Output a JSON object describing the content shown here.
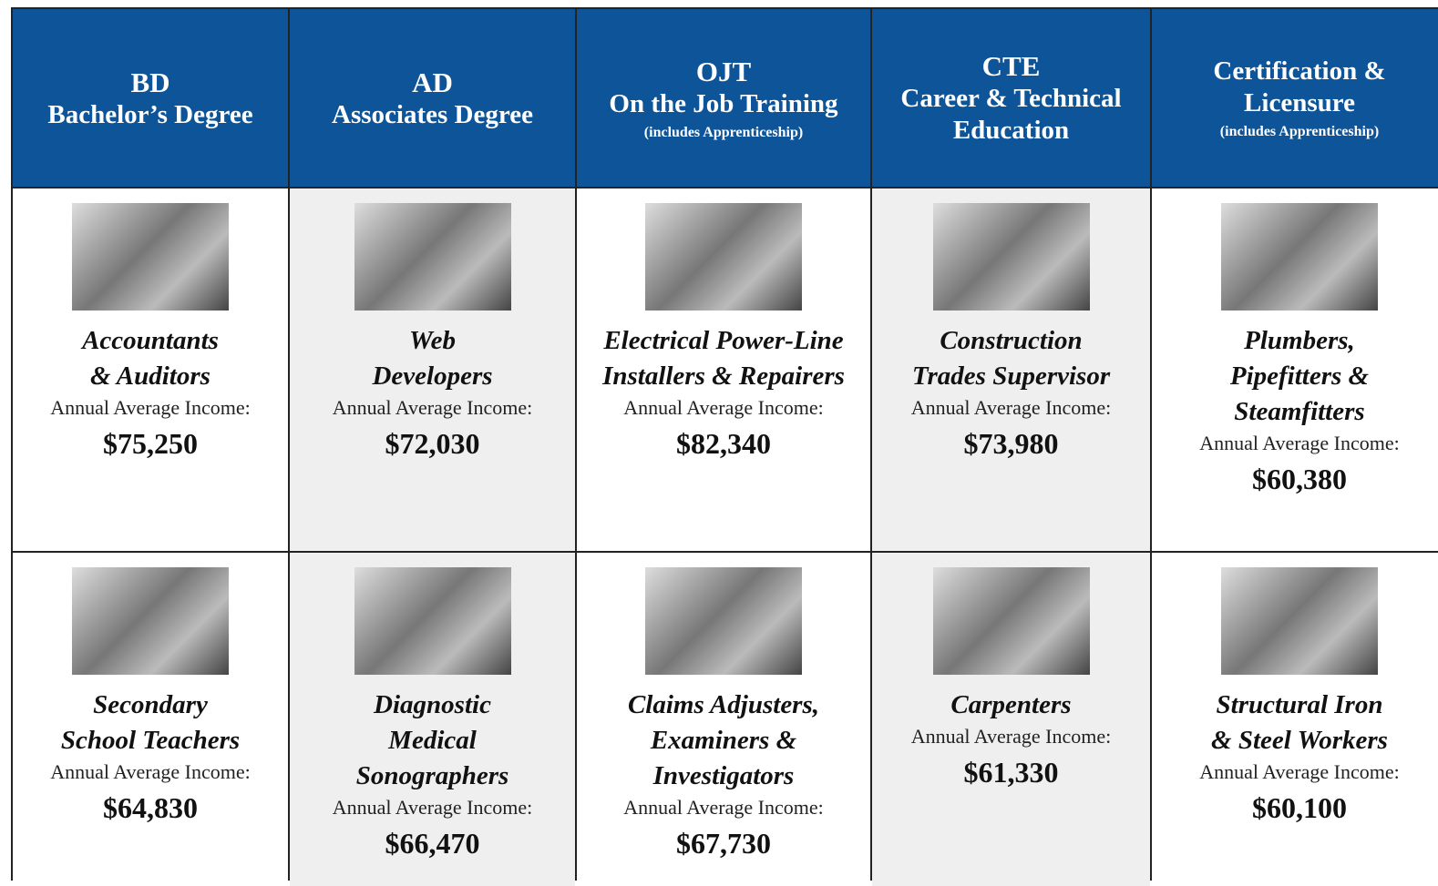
{
  "header": [
    {
      "abbr": "BD",
      "name": "Bachelor’s Degree"
    },
    {
      "abbr": "AD",
      "name": "Associates Degree"
    },
    {
      "abbr": "OJT",
      "name": "On the Job Training",
      "note": "(includes Apprenticeship)"
    },
    {
      "abbr": "CTE",
      "name": "Career & Technical Education"
    },
    {
      "name": "Certification & Licensure",
      "note": "(includes Apprenticeship)"
    }
  ],
  "rows": [
    [
      {
        "occupation": [
          "Accountants",
          "& Auditors"
        ],
        "label": "Annual Average Income:",
        "income": "$75,250"
      },
      {
        "occupation": [
          "Web",
          "Developers"
        ],
        "label": "Annual Average Income:",
        "income": "$72,030"
      },
      {
        "occupation": [
          "Electrical Power-Line",
          "Installers & Repairers"
        ],
        "label": "Annual Average Income:",
        "income": "$82,340"
      },
      {
        "occupation": [
          "Construction",
          "Trades Supervisor"
        ],
        "label": "Annual Average Income:",
        "income": "$73,980"
      },
      {
        "occupation": [
          "Plumbers,",
          "Pipefitters &",
          "Steamfitters"
        ],
        "label": "Annual Average Income:",
        "income": "$60,380"
      }
    ],
    [
      {
        "occupation": [
          "Secondary",
          "School Teachers"
        ],
        "label": "Annual Average Income:",
        "income": "$64,830"
      },
      {
        "occupation": [
          "Diagnostic",
          "Medical",
          "Sonographers"
        ],
        "label": "Annual Average Income:",
        "income": "$66,470"
      },
      {
        "occupation": [
          "Claims Adjusters,",
          "Examiners &",
          "Investigators"
        ],
        "label": "Annual Average Income:",
        "income": "$67,730"
      },
      {
        "occupation": [
          "Carpenters"
        ],
        "label": "Annual Average Income:",
        "income": "$61,330"
      },
      {
        "occupation": [
          "Structural Iron",
          "& Steel Workers"
        ],
        "label": "Annual Average Income:",
        "income": "$60,100"
      }
    ]
  ]
}
